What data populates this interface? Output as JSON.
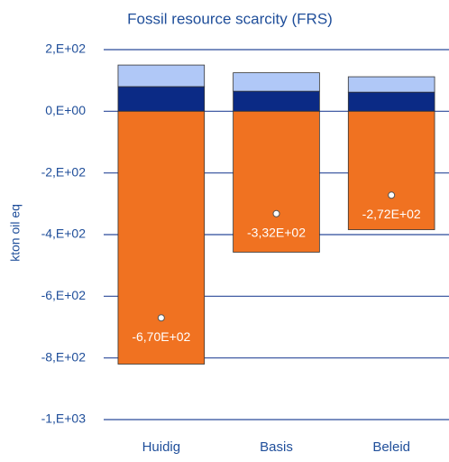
{
  "chart_data": {
    "type": "bar",
    "stacked": true,
    "title": "Fossil resource scarcity (FRS)",
    "y_label": "kton oil eq",
    "categories": [
      "Huidig",
      "Basis",
      "Beleid"
    ],
    "series": [
      {
        "color": "#0b2a85",
        "values": [
          80,
          65,
          62
        ]
      },
      {
        "color": "#b0c8f7",
        "values": [
          70,
          60,
          50
        ]
      },
      {
        "color": "#f07221",
        "values": [
          -820,
          -457,
          -384
        ]
      }
    ],
    "net": {
      "values": [
        -670,
        -332,
        -272
      ],
      "value_labels": [
        "-6,70E+02",
        "-3,32E+02",
        "-2,72E+02"
      ],
      "color": "#ffffff"
    },
    "ylim": [
      -1000,
      200
    ],
    "yticks": [
      {
        "value": 200,
        "label": "2,E+02"
      },
      {
        "value": 0,
        "label": "0,E+00"
      },
      {
        "value": -200,
        "label": "-2,E+02"
      },
      {
        "value": -400,
        "label": "-4,E+02"
      },
      {
        "value": -600,
        "label": "-6,E+02"
      },
      {
        "value": -800,
        "label": "-8,E+02"
      },
      {
        "value": -1000,
        "label": "-1,E+03"
      }
    ],
    "grid": true
  }
}
